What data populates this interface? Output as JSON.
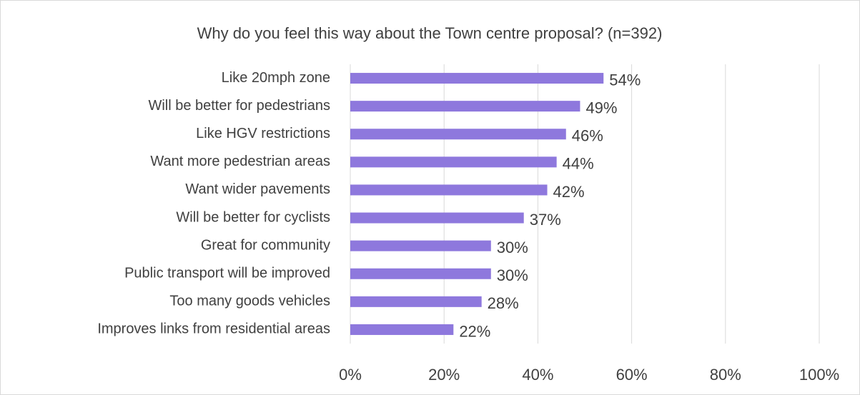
{
  "chart_data": {
    "type": "bar",
    "orientation": "horizontal",
    "title": "Why do you feel this way about the Town centre proposal? (n=392)",
    "categories": [
      "Like 20mph zone",
      "Will be better for pedestrians",
      "Like HGV restrictions",
      "Want more pedestrian areas",
      "Want wider pavements",
      "Will be better for cyclists",
      "Great for community",
      "Public transport will be improved",
      "Too many goods vehicles",
      "Improves links from residential areas"
    ],
    "values": [
      54,
      49,
      46,
      44,
      42,
      37,
      30,
      30,
      28,
      22
    ],
    "value_labels": [
      "54%",
      "49%",
      "46%",
      "44%",
      "42%",
      "37%",
      "30%",
      "30%",
      "28%",
      "22%"
    ],
    "color": "#8e78dd",
    "xlim": [
      0,
      100
    ],
    "xticks": [
      {
        "value": 0,
        "label": "0%"
      },
      {
        "value": 20,
        "label": "20%"
      },
      {
        "value": 40,
        "label": "40%"
      },
      {
        "value": 60,
        "label": "60%"
      },
      {
        "value": 80,
        "label": "80%"
      },
      {
        "value": 100,
        "label": "100%"
      }
    ],
    "grid": true
  }
}
